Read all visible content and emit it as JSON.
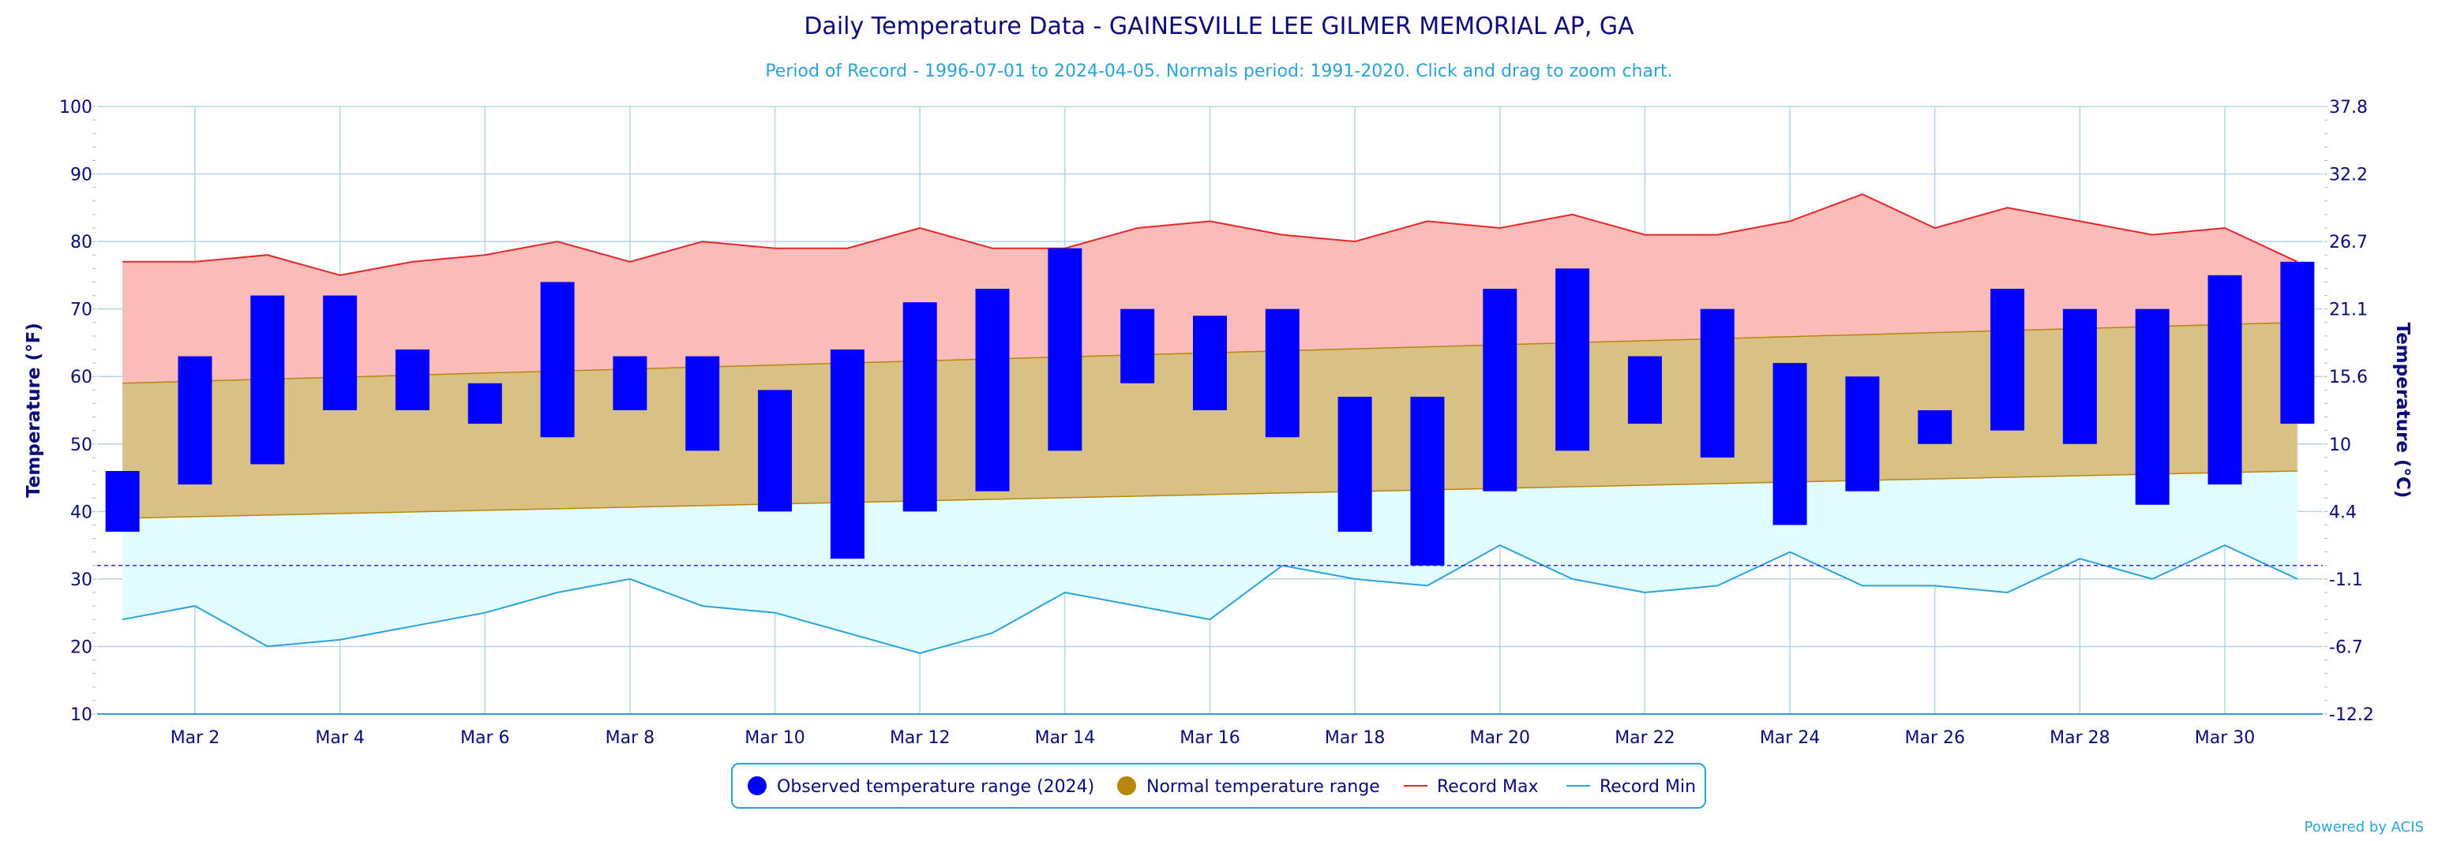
{
  "chart_data": {
    "type": "bar",
    "title": "Daily Temperature Data - GAINESVILLE LEE GILMER MEMORIAL AP, GA",
    "subtitle": "Period of Record - 1996-07-01 to 2024-04-05. Normals period: 1991-2020. Click and drag to zoom chart.",
    "ylabel_left": "Temperature (°F)",
    "ylabel_right": "Temperature (°C)",
    "ylim": [
      10,
      100
    ],
    "y_ticks": [
      10,
      20,
      30,
      40,
      50,
      60,
      70,
      80,
      90,
      100
    ],
    "right_ticks": [
      "-12.2",
      "-6.7",
      "-1.1",
      "4.4",
      "10",
      "15.6",
      "21.1",
      "26.7",
      "32.2",
      "37.8"
    ],
    "freezing_line": 32,
    "days": [
      1,
      2,
      3,
      4,
      5,
      6,
      7,
      8,
      9,
      10,
      11,
      12,
      13,
      14,
      15,
      16,
      17,
      18,
      19,
      20,
      21,
      22,
      23,
      24,
      25,
      26,
      27,
      28,
      29,
      30,
      31
    ],
    "x_tick_labels": [
      {
        "day": 2,
        "label": "Mar 2"
      },
      {
        "day": 4,
        "label": "Mar 4"
      },
      {
        "day": 6,
        "label": "Mar 6"
      },
      {
        "day": 8,
        "label": "Mar 8"
      },
      {
        "day": 10,
        "label": "Mar 10"
      },
      {
        "day": 12,
        "label": "Mar 12"
      },
      {
        "day": 14,
        "label": "Mar 14"
      },
      {
        "day": 16,
        "label": "Mar 16"
      },
      {
        "day": 18,
        "label": "Mar 18"
      },
      {
        "day": 20,
        "label": "Mar 20"
      },
      {
        "day": 22,
        "label": "Mar 22"
      },
      {
        "day": 24,
        "label": "Mar 24"
      },
      {
        "day": 26,
        "label": "Mar 26"
      },
      {
        "day": 28,
        "label": "Mar 28"
      },
      {
        "day": 30,
        "label": "Mar 30"
      }
    ],
    "series": [
      {
        "name": "Observed temperature range (2024)",
        "color": "#0000ff",
        "low": [
          37,
          44,
          47,
          55,
          55,
          53,
          51,
          55,
          49,
          40,
          33,
          40,
          43,
          49,
          59,
          55,
          51,
          37,
          32,
          43,
          49,
          53,
          48,
          38,
          43,
          50,
          52,
          50,
          41,
          44,
          53
        ],
        "high": [
          46,
          63,
          72,
          72,
          64,
          59,
          74,
          63,
          63,
          58,
          64,
          71,
          73,
          79,
          70,
          69,
          70,
          57,
          57,
          73,
          76,
          63,
          70,
          62,
          60,
          55,
          73,
          70,
          70,
          75,
          77
        ]
      },
      {
        "name": "Normal temperature range",
        "color": "#b8860b",
        "low_start": 39,
        "low_end": 46,
        "high_start": 59,
        "high_end": 68
      },
      {
        "name": "Record Max",
        "color": "#e8262a",
        "values": [
          77,
          77,
          78,
          75,
          77,
          78,
          80,
          77,
          80,
          79,
          79,
          82,
          79,
          79,
          82,
          83,
          81,
          80,
          83,
          82,
          84,
          81,
          81,
          83,
          87,
          82,
          85,
          83,
          81,
          82,
          77
        ]
      },
      {
        "name": "Record Min",
        "color": "#2aa3d9",
        "values": [
          24,
          26,
          20,
          21,
          23,
          25,
          28,
          30,
          26,
          25,
          22,
          19,
          22,
          28,
          26,
          24,
          32,
          30,
          29,
          35,
          30,
          28,
          29,
          34,
          29,
          29,
          28,
          33,
          30,
          35,
          30
        ]
      }
    ],
    "legend_position": "bottom-center",
    "grid": true
  },
  "credit": "Powered by ACIS"
}
